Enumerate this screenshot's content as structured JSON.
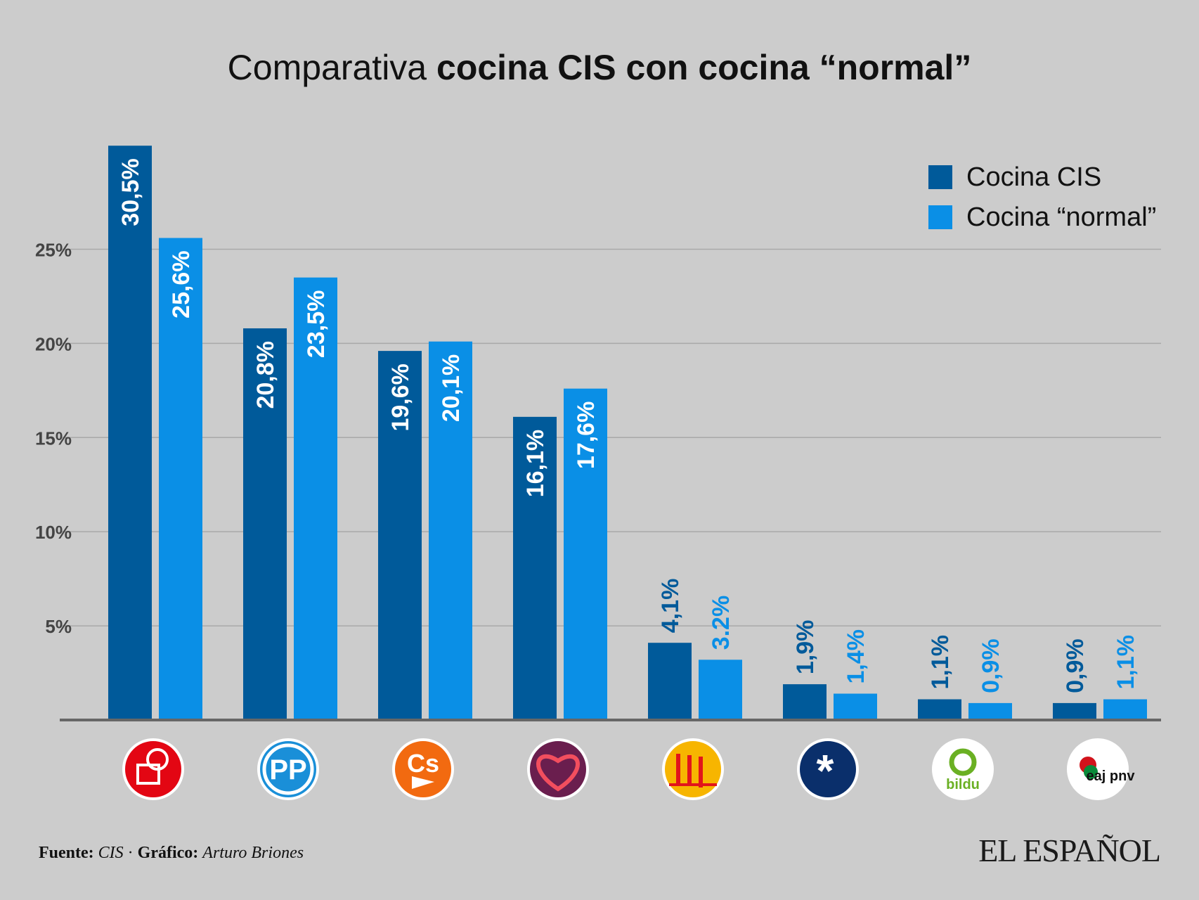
{
  "chart_data": {
    "type": "bar",
    "title_prefix": "Comparativa ",
    "title_bold": "cocina CIS con cocina “normal”",
    "categories": [
      "PSOE",
      "PP",
      "Cs",
      "Unidas Podemos",
      "ERC",
      "JxCat",
      "Bildu",
      "PNV"
    ],
    "series": [
      {
        "name": "Cocina CIS",
        "color": "#005a9a",
        "values": [
          30.5,
          20.8,
          19.6,
          16.1,
          4.1,
          1.9,
          1.1,
          0.9
        ],
        "labels": [
          "30,5%",
          "20,8%",
          "19,6%",
          "16,1%",
          "4,1%",
          "1,9%",
          "1,1%",
          "0,9%"
        ]
      },
      {
        "name": "Cocina “normal”",
        "color": "#0a8fe6",
        "values": [
          25.6,
          23.5,
          20.1,
          17.6,
          3.2,
          1.4,
          0.9,
          1.1
        ],
        "labels": [
          "25,6%",
          "23,5%",
          "20,1%",
          "17,6%",
          "3.2%",
          "1,4%",
          "0,9%",
          "1,1%"
        ]
      }
    ],
    "yticks": [
      "5%",
      "10%",
      "15%",
      "20%",
      "25%"
    ],
    "ytick_values": [
      5,
      10,
      15,
      20,
      25
    ],
    "ylim": [
      0,
      30
    ],
    "grid": true,
    "legend": "top-right"
  },
  "logos": [
    {
      "icon": "psoe-logo-icon",
      "color": "#e30613",
      "text": ""
    },
    {
      "icon": "pp-logo-icon",
      "color": "#1a8fd8",
      "text": "PP"
    },
    {
      "icon": "cs-logo-icon",
      "color": "#f26a10",
      "text": "Cs"
    },
    {
      "icon": "podemos-logo-icon",
      "color": "#6a1e4e",
      "text": ""
    },
    {
      "icon": "erc-logo-icon",
      "color": "#f7b500",
      "text": ""
    },
    {
      "icon": "jxcat-logo-icon",
      "color": "#0a2f6b",
      "text": ""
    },
    {
      "icon": "bildu-logo-icon",
      "color": "#ffffff",
      "text": "bildu"
    },
    {
      "icon": "pnv-logo-icon",
      "color": "#ffffff",
      "text": "eaj pnv"
    }
  ],
  "footer": {
    "source_label": "Fuente:",
    "source_value": "CIS",
    "separator": " · ",
    "graphic_label": "Gráfico:",
    "graphic_value": "Arturo Briones"
  },
  "brand": "EL ESPAÑOL"
}
